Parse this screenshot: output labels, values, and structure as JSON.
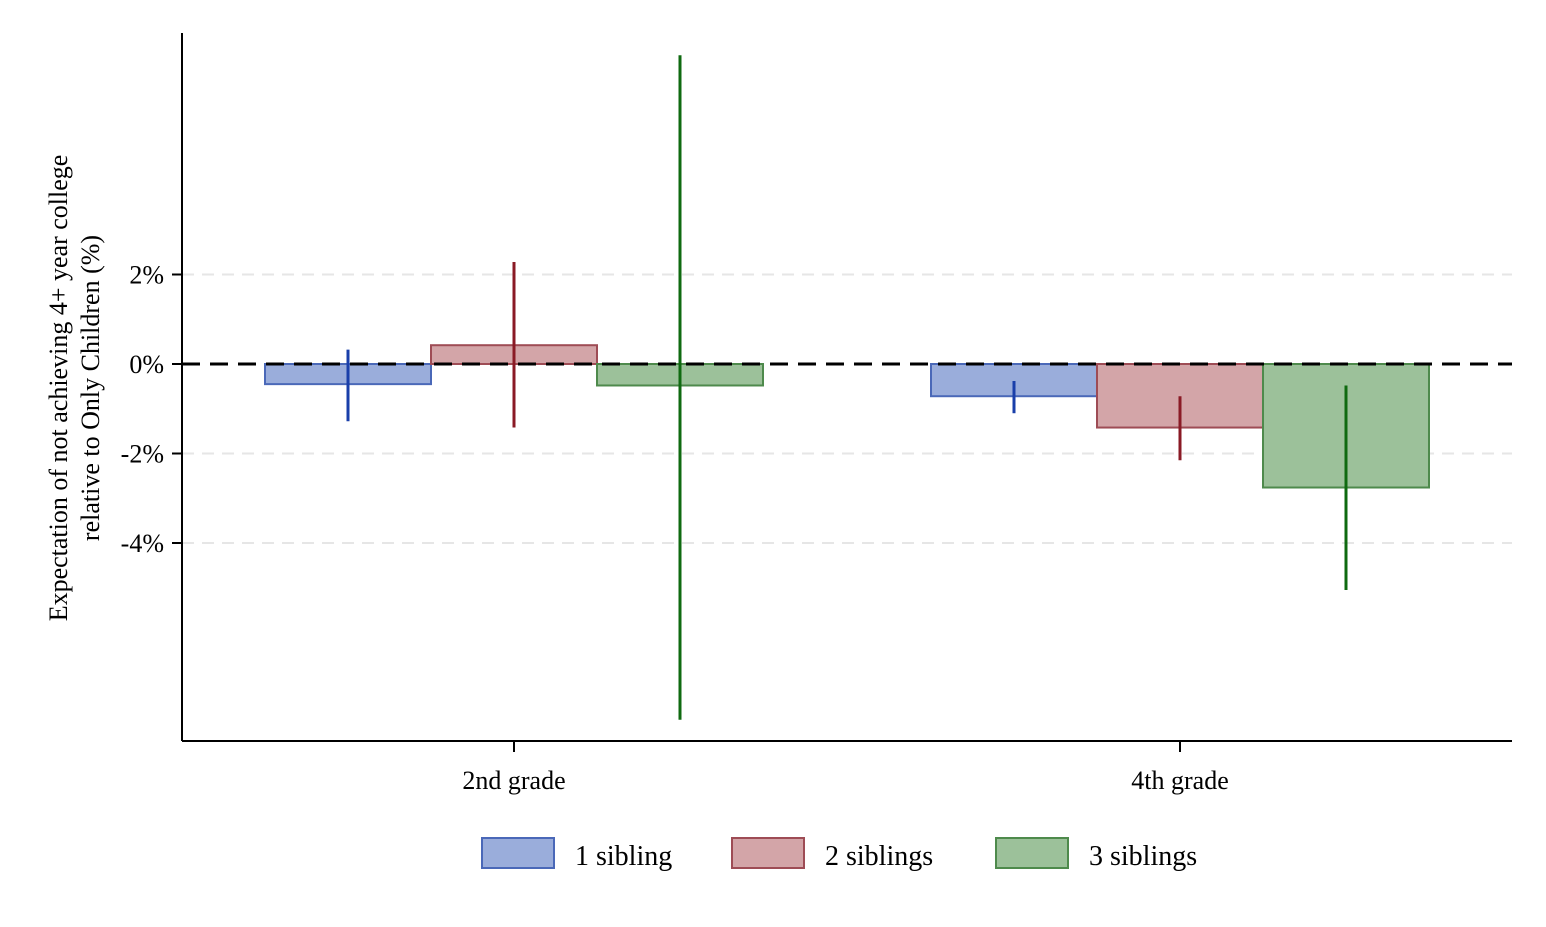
{
  "chart_data": {
    "type": "bar",
    "categories": [
      "2nd grade",
      "4th grade"
    ],
    "series": [
      {
        "name": "1 sibling",
        "values": [
          -0.45,
          -0.72
        ],
        "ci_low": [
          -1.28,
          -1.1
        ],
        "ci_high": [
          0.32,
          -0.38
        ],
        "fill": "#9aaddb",
        "stroke": "#4a68b8",
        "ci_color": "#1a3faa"
      },
      {
        "name": "2 siblings",
        "values": [
          0.42,
          -1.42
        ],
        "ci_low": [
          -1.42,
          -2.15
        ],
        "ci_high": [
          2.28,
          -0.72
        ],
        "fill": "#d3a5a8",
        "stroke": "#9e4c55",
        "ci_color": "#8a1a25"
      },
      {
        "name": "3 siblings",
        "values": [
          -0.48,
          -2.76
        ],
        "ci_low": [
          -7.95,
          -5.05
        ],
        "ci_high": [
          6.9,
          -0.48
        ],
        "fill": "#9cc19a",
        "stroke": "#4e8a4c",
        "ci_color": "#0f6a10"
      }
    ],
    "ylabel_line1": "Expectation of not achieving 4+ year college",
    "ylabel_line2": "relative to Only Children (%)",
    "yticks": [
      2,
      0,
      -2,
      -4
    ],
    "ytick_labels": [
      "2%",
      "0%",
      "-2%",
      "-4%"
    ],
    "ylim": [
      -8.4,
      7.4
    ],
    "grid": true,
    "reference_line": 0,
    "legend": "bottom"
  }
}
